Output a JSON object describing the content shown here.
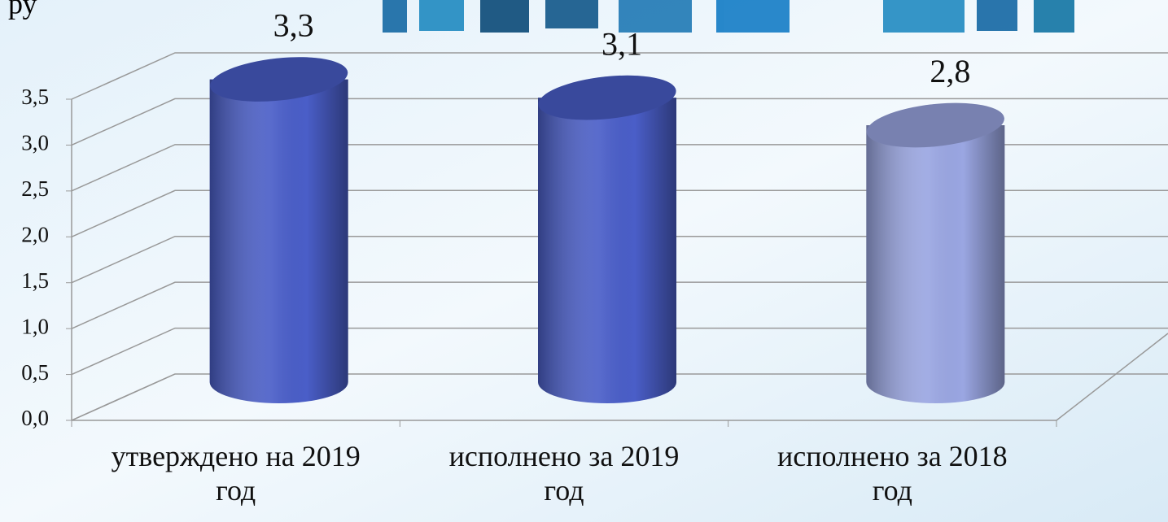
{
  "chart_data": {
    "type": "bar3d",
    "unit_label": "ру",
    "categories": [
      "утверждено на 2019 год",
      "исполнено за 2019 год",
      "исполнено за 2018 год"
    ],
    "values": [
      3.3,
      3.1,
      2.8
    ],
    "value_labels": [
      "3,3",
      "3,1",
      "2,8"
    ],
    "colors": [
      "#4a5ec8",
      "#4a5ec8",
      "#9aa6e2"
    ],
    "ylim": [
      0,
      3.5
    ],
    "yticks": [
      {
        "value": 0,
        "label": "0,0"
      },
      {
        "value": 0.5,
        "label": "0,5"
      },
      {
        "value": 1,
        "label": "1,0"
      },
      {
        "value": 1.5,
        "label": "1,5"
      },
      {
        "value": 2,
        "label": "2,0"
      },
      {
        "value": 2.5,
        "label": "2,5"
      },
      {
        "value": 3,
        "label": "3,0"
      },
      {
        "value": 3.5,
        "label": "3,5"
      }
    ],
    "grid": true
  }
}
